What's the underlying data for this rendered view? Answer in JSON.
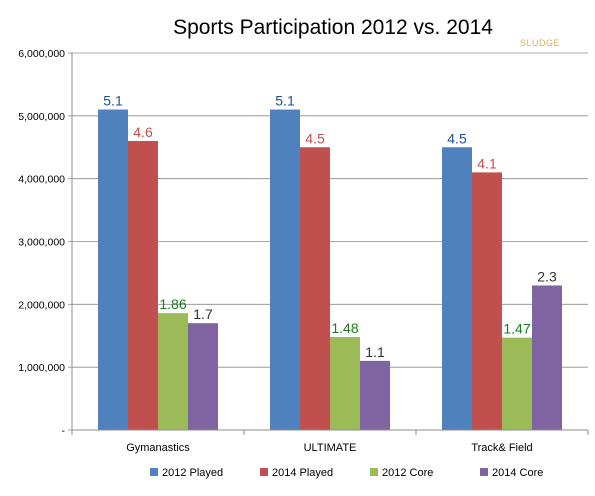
{
  "chart_data": {
    "type": "bar",
    "title": "Sports Participation 2012 vs. 2014",
    "watermark": "SLUDGE",
    "categories": [
      "Gymanastics",
      "ULTIMATE",
      "Track& Field"
    ],
    "series": [
      {
        "name": "2012 Played",
        "color": "#4f81bd",
        "label_color": "#1f4e99",
        "values": [
          5100000,
          5100000,
          4500000
        ],
        "labels": [
          "5.1",
          "5.1",
          "4.5"
        ]
      },
      {
        "name": "2014 Played",
        "color": "#c0504d",
        "label_color": "#c0504d",
        "values": [
          4600000,
          4500000,
          4100000
        ],
        "labels": [
          "4.6",
          "4.5",
          "4.1"
        ]
      },
      {
        "name": "2012 Core",
        "color": "#9bbb59",
        "label_color": "#1e7a1e",
        "values": [
          1860000,
          1480000,
          1470000
        ],
        "labels": [
          "1.86",
          "1.48",
          "1.47"
        ]
      },
      {
        "name": "2014 Core",
        "color": "#8064a2",
        "label_color": "#333333",
        "values": [
          1700000,
          1100000,
          2300000
        ],
        "labels": [
          "1.7",
          "1.1",
          "2.3"
        ]
      }
    ],
    "ylim": [
      0,
      6000000
    ],
    "yticks": [
      0,
      1000000,
      2000000,
      3000000,
      4000000,
      5000000,
      6000000
    ],
    "ytick_labels": [
      "-",
      "1,000,000",
      "2,000,000",
      "3,000,000",
      "4,000,000",
      "5,000,000",
      "6,000,000"
    ],
    "grid": true,
    "legend_position": "bottom"
  }
}
